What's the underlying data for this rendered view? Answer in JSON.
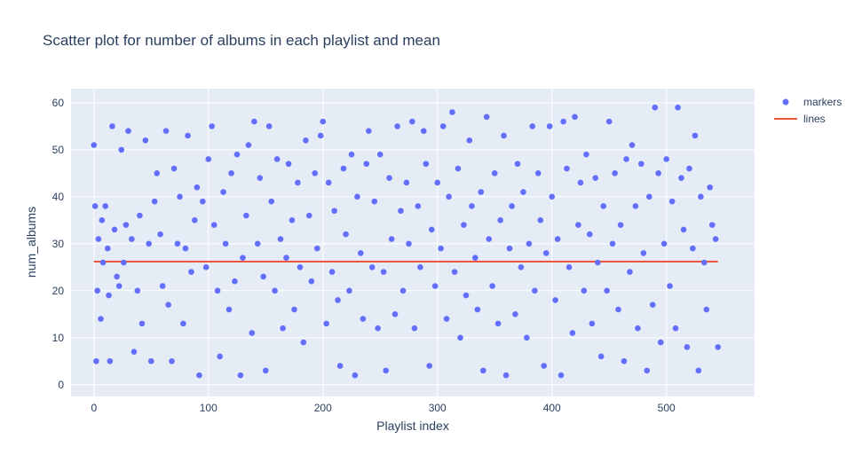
{
  "chart_data": {
    "type": "scatter",
    "title": "Scatter plot for number of albums in each playlist and mean",
    "xlabel": "Playlist index",
    "ylabel": "num_albums",
    "xlim": [
      -20,
      577
    ],
    "ylim": [
      -2.5,
      63
    ],
    "x_ticks": [
      0,
      100,
      200,
      300,
      400,
      500
    ],
    "y_ticks": [
      0,
      10,
      20,
      30,
      40,
      50,
      60
    ],
    "grid": true,
    "legend_position": "top-right",
    "colors": {
      "plot_bg": "#e5ecf6",
      "grid": "#ffffff",
      "markers": "#636efa",
      "lines": "#ef553b",
      "text": "#2a3f5f"
    },
    "markers": {
      "name": "markers",
      "points": [
        [
          0,
          51
        ],
        [
          1,
          38
        ],
        [
          2,
          5
        ],
        [
          3,
          20
        ],
        [
          4,
          31
        ],
        [
          6,
          14
        ],
        [
          7,
          35
        ],
        [
          8,
          26
        ],
        [
          10,
          38
        ],
        [
          12,
          29
        ],
        [
          13,
          19
        ],
        [
          14,
          5
        ],
        [
          16,
          55
        ],
        [
          18,
          33
        ],
        [
          20,
          23
        ],
        [
          22,
          21
        ],
        [
          24,
          50
        ],
        [
          26,
          26
        ],
        [
          28,
          34
        ],
        [
          30,
          54
        ],
        [
          33,
          31
        ],
        [
          35,
          7
        ],
        [
          38,
          20
        ],
        [
          40,
          36
        ],
        [
          42,
          13
        ],
        [
          45,
          52
        ],
        [
          48,
          30
        ],
        [
          50,
          5
        ],
        [
          53,
          39
        ],
        [
          55,
          45
        ],
        [
          58,
          32
        ],
        [
          60,
          21
        ],
        [
          63,
          54
        ],
        [
          65,
          17
        ],
        [
          68,
          5
        ],
        [
          70,
          46
        ],
        [
          73,
          30
        ],
        [
          75,
          40
        ],
        [
          78,
          13
        ],
        [
          80,
          29
        ],
        [
          82,
          53
        ],
        [
          85,
          24
        ],
        [
          88,
          35
        ],
        [
          90,
          42
        ],
        [
          92,
          2
        ],
        [
          95,
          39
        ],
        [
          98,
          25
        ],
        [
          100,
          48
        ],
        [
          103,
          55
        ],
        [
          105,
          34
        ],
        [
          108,
          20
        ],
        [
          110,
          6
        ],
        [
          113,
          41
        ],
        [
          115,
          30
        ],
        [
          118,
          16
        ],
        [
          120,
          45
        ],
        [
          123,
          22
        ],
        [
          125,
          49
        ],
        [
          128,
          2
        ],
        [
          130,
          27
        ],
        [
          133,
          36
        ],
        [
          135,
          51
        ],
        [
          138,
          11
        ],
        [
          140,
          56
        ],
        [
          143,
          30
        ],
        [
          145,
          44
        ],
        [
          148,
          23
        ],
        [
          150,
          3
        ],
        [
          153,
          55
        ],
        [
          155,
          39
        ],
        [
          158,
          20
        ],
        [
          160,
          48
        ],
        [
          163,
          31
        ],
        [
          165,
          12
        ],
        [
          168,
          27
        ],
        [
          170,
          47
        ],
        [
          173,
          35
        ],
        [
          175,
          16
        ],
        [
          178,
          43
        ],
        [
          180,
          25
        ],
        [
          183,
          9
        ],
        [
          185,
          52
        ],
        [
          188,
          36
        ],
        [
          190,
          22
        ],
        [
          193,
          45
        ],
        [
          195,
          29
        ],
        [
          198,
          53
        ],
        [
          200,
          56
        ],
        [
          203,
          13
        ],
        [
          205,
          43
        ],
        [
          208,
          24
        ],
        [
          210,
          37
        ],
        [
          213,
          18
        ],
        [
          215,
          4
        ],
        [
          218,
          46
        ],
        [
          220,
          32
        ],
        [
          223,
          20
        ],
        [
          225,
          49
        ],
        [
          228,
          2
        ],
        [
          230,
          40
        ],
        [
          233,
          28
        ],
        [
          235,
          14
        ],
        [
          238,
          47
        ],
        [
          240,
          54
        ],
        [
          243,
          25
        ],
        [
          245,
          39
        ],
        [
          248,
          12
        ],
        [
          250,
          49
        ],
        [
          253,
          24
        ],
        [
          255,
          3
        ],
        [
          258,
          44
        ],
        [
          260,
          31
        ],
        [
          263,
          15
        ],
        [
          265,
          55
        ],
        [
          268,
          37
        ],
        [
          270,
          20
        ],
        [
          273,
          43
        ],
        [
          275,
          30
        ],
        [
          278,
          56
        ],
        [
          280,
          12
        ],
        [
          283,
          38
        ],
        [
          285,
          25
        ],
        [
          288,
          54
        ],
        [
          290,
          47
        ],
        [
          293,
          4
        ],
        [
          295,
          33
        ],
        [
          298,
          21
        ],
        [
          300,
          43
        ],
        [
          303,
          29
        ],
        [
          305,
          55
        ],
        [
          308,
          14
        ],
        [
          310,
          40
        ],
        [
          313,
          58
        ],
        [
          315,
          24
        ],
        [
          318,
          46
        ],
        [
          320,
          10
        ],
        [
          323,
          34
        ],
        [
          325,
          19
        ],
        [
          328,
          52
        ],
        [
          330,
          38
        ],
        [
          333,
          27
        ],
        [
          335,
          16
        ],
        [
          338,
          41
        ],
        [
          340,
          3
        ],
        [
          343,
          57
        ],
        [
          345,
          31
        ],
        [
          348,
          21
        ],
        [
          350,
          45
        ],
        [
          353,
          13
        ],
        [
          355,
          35
        ],
        [
          358,
          53
        ],
        [
          360,
          2
        ],
        [
          363,
          29
        ],
        [
          365,
          38
        ],
        [
          368,
          15
        ],
        [
          370,
          47
        ],
        [
          373,
          25
        ],
        [
          375,
          41
        ],
        [
          378,
          10
        ],
        [
          380,
          30
        ],
        [
          383,
          55
        ],
        [
          385,
          20
        ],
        [
          388,
          45
        ],
        [
          390,
          35
        ],
        [
          393,
          4
        ],
        [
          395,
          28
        ],
        [
          398,
          55
        ],
        [
          400,
          40
        ],
        [
          403,
          18
        ],
        [
          405,
          31
        ],
        [
          408,
          2
        ],
        [
          410,
          56
        ],
        [
          413,
          46
        ],
        [
          415,
          25
        ],
        [
          418,
          11
        ],
        [
          420,
          57
        ],
        [
          423,
          34
        ],
        [
          425,
          43
        ],
        [
          428,
          20
        ],
        [
          430,
          49
        ],
        [
          433,
          32
        ],
        [
          435,
          13
        ],
        [
          438,
          44
        ],
        [
          440,
          26
        ],
        [
          443,
          6
        ],
        [
          445,
          38
        ],
        [
          448,
          20
        ],
        [
          450,
          56
        ],
        [
          453,
          30
        ],
        [
          455,
          45
        ],
        [
          458,
          16
        ],
        [
          460,
          34
        ],
        [
          463,
          5
        ],
        [
          465,
          48
        ],
        [
          468,
          24
        ],
        [
          470,
          51
        ],
        [
          473,
          38
        ],
        [
          475,
          12
        ],
        [
          478,
          47
        ],
        [
          480,
          28
        ],
        [
          483,
          3
        ],
        [
          485,
          40
        ],
        [
          488,
          17
        ],
        [
          490,
          59
        ],
        [
          493,
          45
        ],
        [
          495,
          9
        ],
        [
          498,
          30
        ],
        [
          500,
          48
        ],
        [
          503,
          21
        ],
        [
          505,
          39
        ],
        [
          508,
          12
        ],
        [
          510,
          59
        ],
        [
          513,
          44
        ],
        [
          515,
          33
        ],
        [
          518,
          8
        ],
        [
          520,
          46
        ],
        [
          523,
          29
        ],
        [
          525,
          53
        ],
        [
          528,
          3
        ],
        [
          530,
          40
        ],
        [
          533,
          26
        ],
        [
          535,
          16
        ],
        [
          538,
          42
        ],
        [
          540,
          34
        ],
        [
          543,
          31
        ],
        [
          545,
          8
        ]
      ]
    },
    "mean_line": {
      "name": "lines",
      "x": [
        0,
        545
      ],
      "y": [
        26.2,
        26.2
      ]
    }
  }
}
